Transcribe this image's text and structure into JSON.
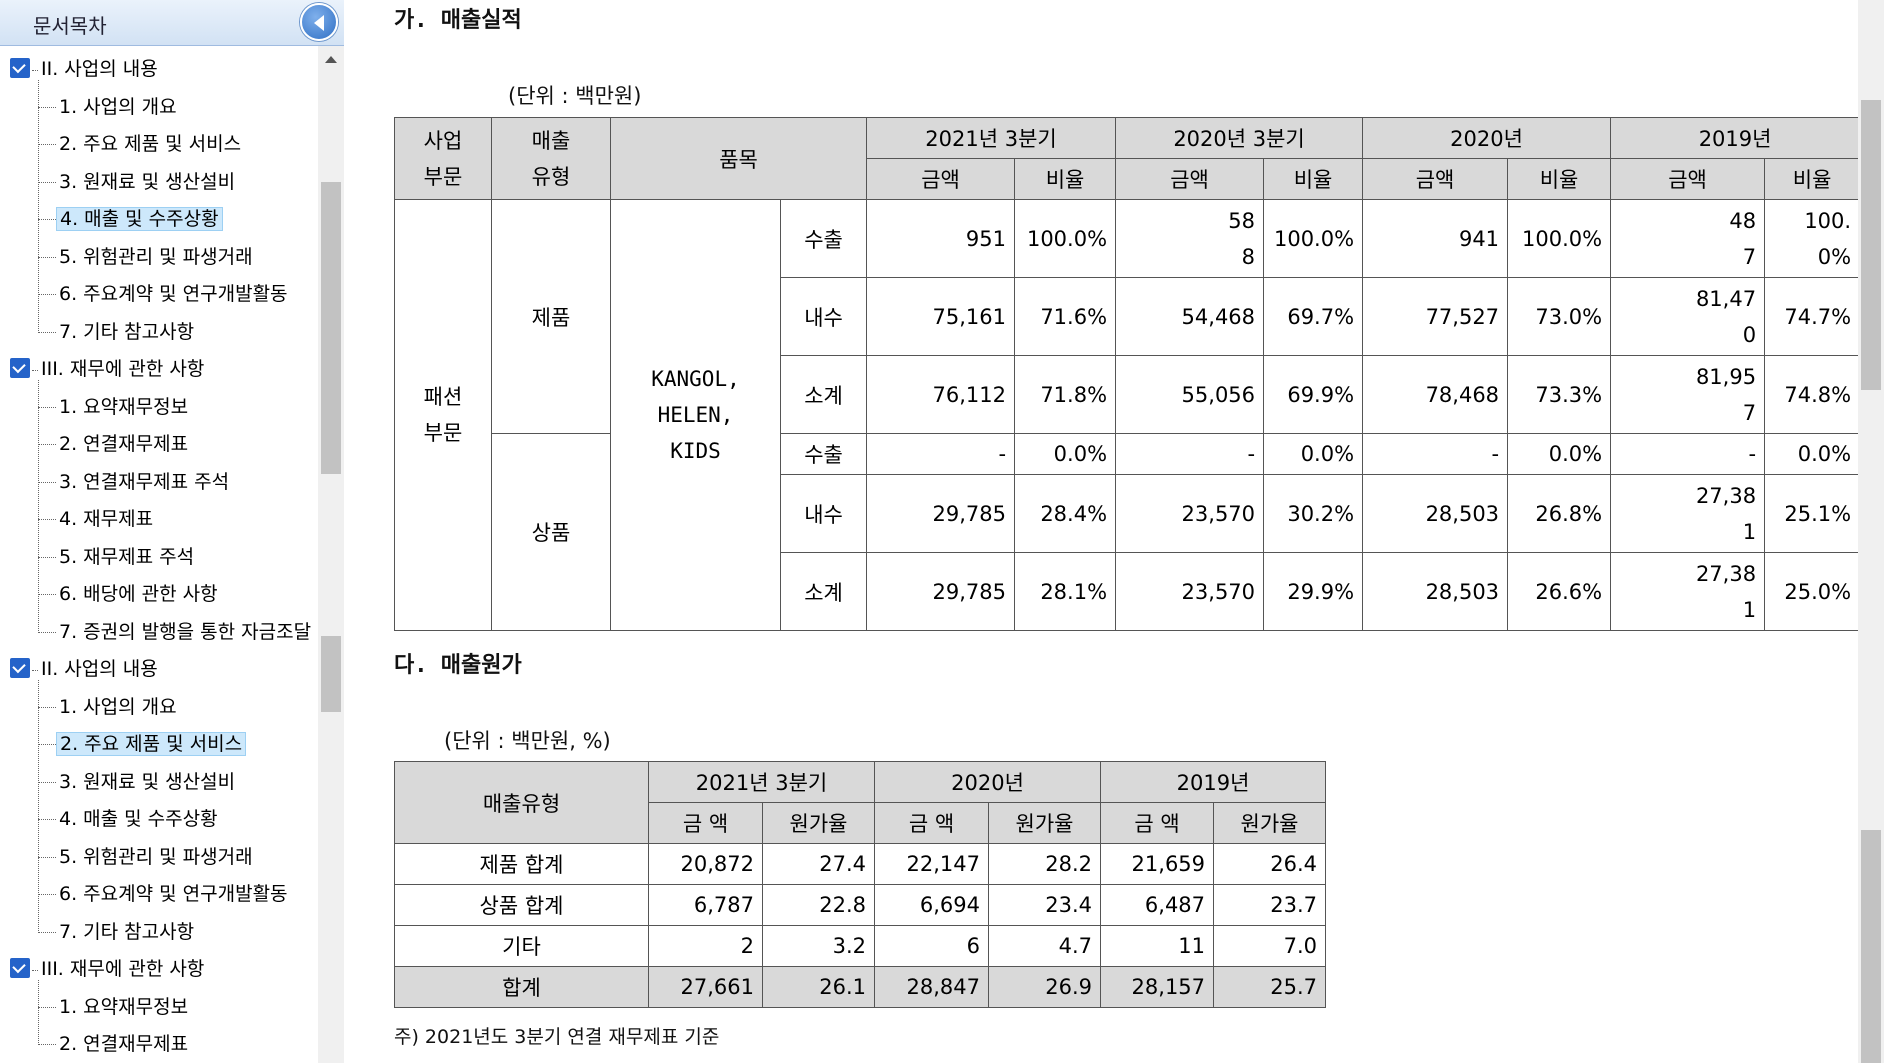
{
  "sidebar": {
    "title": "문서목차",
    "tree": [
      {
        "type": "sec",
        "label": "II. 사업의 내용"
      },
      {
        "type": "item",
        "label": "1. 사업의 개요"
      },
      {
        "type": "item",
        "label": "2. 주요 제품 및 서비스"
      },
      {
        "type": "item",
        "label": "3. 원재료 및 생산설비"
      },
      {
        "type": "item",
        "label": "4. 매출 및 수주상황",
        "selected": true
      },
      {
        "type": "item",
        "label": "5. 위험관리 및 파생거래"
      },
      {
        "type": "item",
        "label": "6. 주요계약 및 연구개발활동"
      },
      {
        "type": "item",
        "label": "7. 기타 참고사항"
      },
      {
        "type": "sec",
        "label": "III. 재무에 관한 사항"
      },
      {
        "type": "item",
        "label": "1. 요약재무정보"
      },
      {
        "type": "item",
        "label": "2. 연결재무제표"
      },
      {
        "type": "item",
        "label": "3. 연결재무제표 주석"
      },
      {
        "type": "item",
        "label": "4. 재무제표"
      },
      {
        "type": "item",
        "label": "5. 재무제표 주석"
      },
      {
        "type": "item",
        "label": "6. 배당에 관한 사항"
      },
      {
        "type": "item",
        "label": "7. 증권의 발행을 통한 자금조달"
      },
      {
        "type": "sec",
        "label": "II. 사업의 내용"
      },
      {
        "type": "item",
        "label": "1. 사업의 개요"
      },
      {
        "type": "item",
        "label": "2. 주요 제품 및 서비스",
        "selected": true
      },
      {
        "type": "item",
        "label": "3. 원재료 및 생산설비"
      },
      {
        "type": "item",
        "label": "4. 매출 및 수주상황"
      },
      {
        "type": "item",
        "label": "5. 위험관리 및 파생거래"
      },
      {
        "type": "item",
        "label": "6. 주요계약 및 연구개발활동"
      },
      {
        "type": "item",
        "label": "7. 기타 참고사항"
      },
      {
        "type": "sec",
        "label": "III. 재무에 관한 사항"
      },
      {
        "type": "item",
        "label": "1. 요약재무정보"
      },
      {
        "type": "item",
        "label": "2. 연결재무제표"
      }
    ]
  },
  "section1": {
    "heading": "가. 매출실적",
    "unit": "(단위 : 백만원)",
    "headers": {
      "division": "사업\n부문",
      "sales_type": "매출\n유형",
      "item": "품목",
      "periods": [
        "2021년 3분기",
        "2020년 3분기",
        "2020년",
        "2019년"
      ],
      "amount": "금액",
      "ratio": "비율"
    },
    "division": "패션\n부문",
    "product_group": "제품",
    "goods_group": "상품",
    "brands": "KANGOL,\nHELEN,\nKIDS",
    "rows": [
      {
        "label": "수출",
        "cells": [
          "951",
          "100.0%",
          "58\n8",
          "100.0%",
          "941",
          "100.0%",
          "48\n7",
          "100.\n0%"
        ]
      },
      {
        "label": "내수",
        "cells": [
          "75,161",
          "71.6%",
          "54,468",
          "69.7%",
          "77,527",
          "73.0%",
          "81,47\n0",
          "74.7%"
        ]
      },
      {
        "label": "소계",
        "cells": [
          "76,112",
          "71.8%",
          "55,056",
          "69.9%",
          "78,468",
          "73.3%",
          "81,95\n7",
          "74.8%"
        ]
      },
      {
        "label": "수출",
        "cells": [
          "-",
          "0.0%",
          "-",
          "0.0%",
          "-",
          "0.0%",
          "-",
          "0.0%"
        ]
      },
      {
        "label": "내수",
        "cells": [
          "29,785",
          "28.4%",
          "23,570",
          "30.2%",
          "28,503",
          "26.8%",
          "27,38\n1",
          "25.1%"
        ]
      },
      {
        "label": "소계",
        "cells": [
          "29,785",
          "28.1%",
          "23,570",
          "29.9%",
          "28,503",
          "26.6%",
          "27,38\n1",
          "25.0%"
        ]
      }
    ]
  },
  "section2": {
    "heading": "다. 매출원가",
    "unit": "(단위 : 백만원, %)",
    "headers": {
      "sales_type": "매출유형",
      "periods": [
        "2021년 3분기",
        "2020년",
        "2019년"
      ],
      "amount": "금 액",
      "cost_ratio": "원가율"
    },
    "rows": [
      {
        "label": "제품 합계",
        "cells": [
          "20,872",
          "27.4",
          "22,147",
          "28.2",
          "21,659",
          "26.4"
        ]
      },
      {
        "label": "상품 합계",
        "cells": [
          "6,787",
          "22.8",
          "6,694",
          "23.4",
          "6,487",
          "23.7"
        ]
      },
      {
        "label": "기타",
        "cells": [
          "2",
          "3.2",
          "6",
          "4.7",
          "11",
          "7.0"
        ]
      },
      {
        "label": "합계",
        "cells": [
          "27,661",
          "26.1",
          "28,847",
          "26.9",
          "28,157",
          "25.7"
        ]
      }
    ],
    "note": "주) 2021년도 3분기 연결 재무제표  기준"
  }
}
